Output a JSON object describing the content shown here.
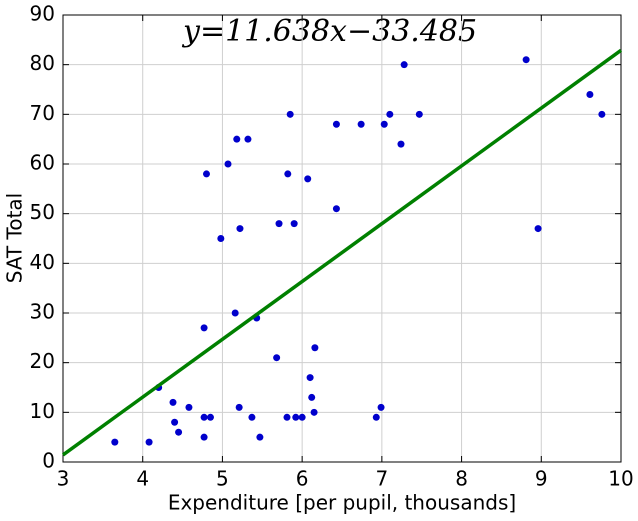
{
  "chart_data": {
    "type": "scatter",
    "x_label": "Expenditure [per pupil, thousands]",
    "y_label": "SAT Total",
    "annotation": "y=11.638x−33.485",
    "series": [
      {
        "color": "#0000cc",
        "x": [
          3.65,
          4.08,
          4.2,
          4.38,
          4.4,
          4.45,
          4.58,
          4.77,
          4.77,
          4.77,
          4.8,
          4.85,
          4.98,
          5.07,
          5.16,
          5.18,
          5.21,
          5.22,
          5.32,
          5.37,
          5.43,
          5.47,
          5.68,
          5.71,
          5.81,
          5.82,
          5.85,
          5.9,
          5.92,
          6.0,
          6.07,
          6.1,
          6.12,
          6.15,
          6.16,
          6.43,
          6.43,
          6.74,
          6.93,
          6.99,
          7.03,
          7.1,
          7.24,
          7.28,
          7.47,
          8.81,
          8.96,
          9.61,
          9.76
        ],
        "values": [
          4,
          4,
          15,
          12,
          8,
          6,
          11,
          27,
          9,
          5,
          58,
          9,
          45,
          60,
          30,
          65,
          11,
          47,
          65,
          9,
          29,
          5,
          21,
          48,
          9,
          58,
          70,
          48,
          9,
          9,
          57,
          17,
          13,
          10,
          23,
          51,
          68,
          68,
          9,
          11,
          68,
          70,
          64,
          80,
          70,
          81,
          47,
          74,
          70
        ]
      }
    ],
    "fit": {
      "slope": 11.638,
      "intercept": -33.485,
      "color": "#008000"
    },
    "xlim": [
      3,
      10
    ],
    "ylim": [
      0,
      90
    ],
    "xticks": [
      3,
      4,
      5,
      6,
      7,
      8,
      9,
      10
    ],
    "yticks": [
      0,
      10,
      20,
      30,
      40,
      50,
      60,
      70,
      80,
      90
    ],
    "grid": true
  }
}
